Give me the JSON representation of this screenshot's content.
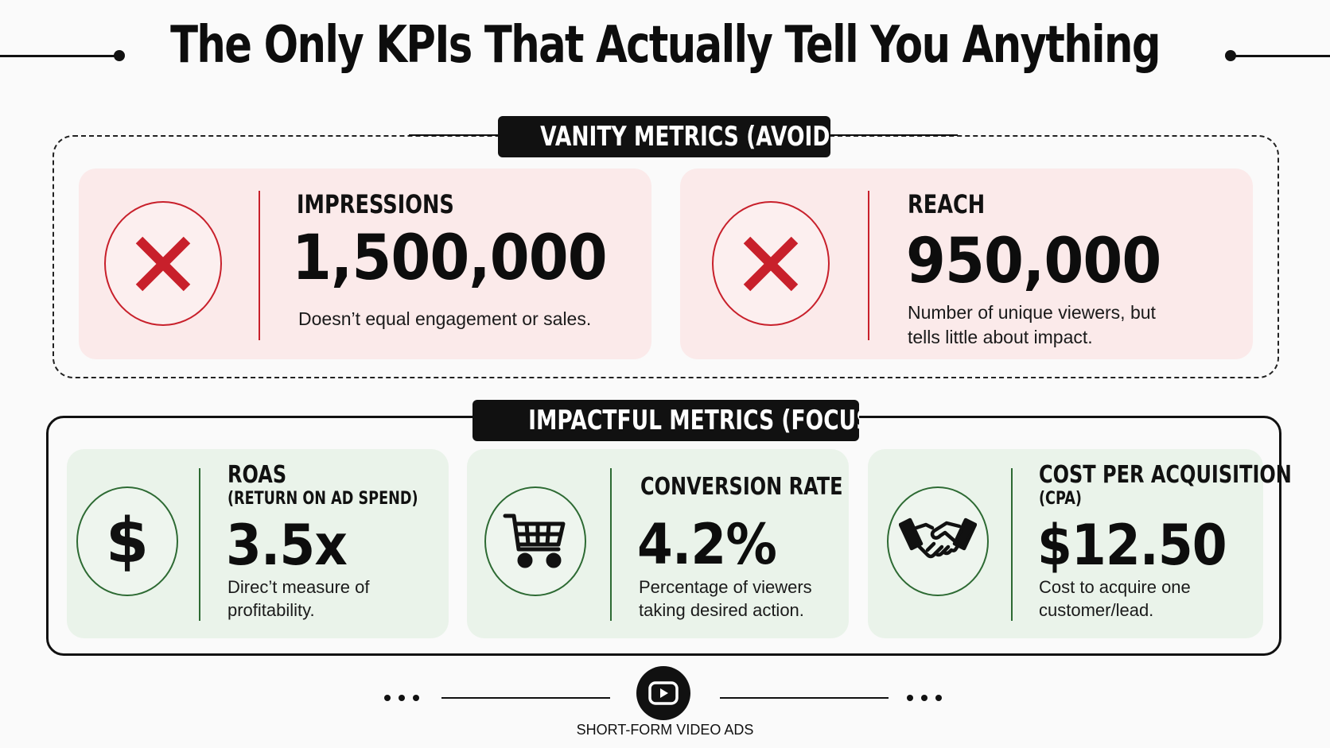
{
  "title": "The Only KPIs That Actually Tell You Anything",
  "vanity": {
    "label": "VANITY METRICS (AVOID)",
    "cards": [
      {
        "icon": "x-icon",
        "label": "IMPRESSIONS",
        "value": "1,500,000",
        "description": "Doesn’t equal engagement or sales."
      },
      {
        "icon": "x-icon",
        "label": "REACH",
        "value": "950,000",
        "description_lines": [
          "Number of unique viewers, but",
          "tells little about impact."
        ]
      }
    ]
  },
  "impact": {
    "label": "IMPACTFUL METRICS (FOCUS ON)",
    "cards": [
      {
        "icon": "dollar-icon",
        "label": "ROAS",
        "sublabel": "(RETURN ON AD SPEND)",
        "value": "3.5x",
        "description_lines": [
          "Direc’t measure of",
          "profitability."
        ]
      },
      {
        "icon": "shopping-cart-icon",
        "label": "CONVERSION RATE",
        "value": "4.2%",
        "description_lines": [
          "Percentage of viewers",
          "taking desired action."
        ]
      },
      {
        "icon": "handshake-icon",
        "label": "COST PER ACQUISITION",
        "sublabel": "(CPA)",
        "value": "$12.50",
        "description_lines": [
          "Cost to acquire one",
          "customer/lead."
        ]
      }
    ]
  },
  "footer": {
    "icon": "play-icon",
    "text": "SHORT-FORM VIDEO ADS"
  },
  "colors": {
    "avoid_accent": "#c8202b",
    "focus_accent": "#2d6a33",
    "avoid_card_bg": "#fbeaea",
    "focus_card_bg": "#eaf3ea"
  }
}
